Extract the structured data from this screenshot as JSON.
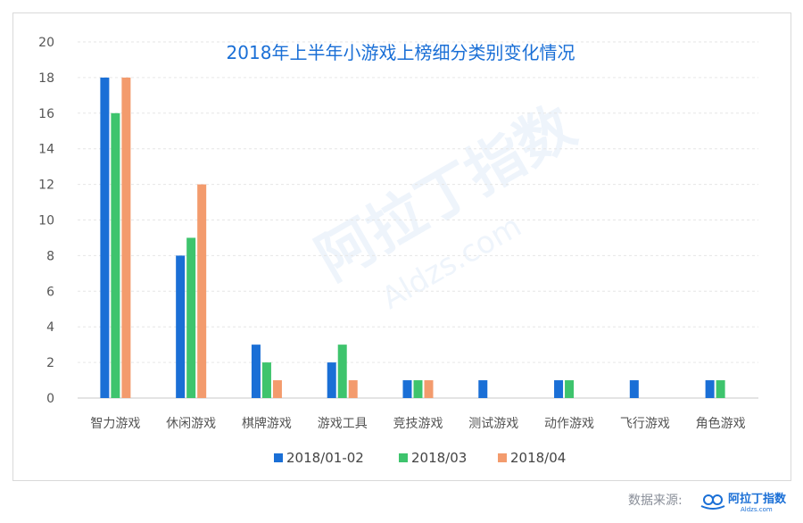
{
  "chart_data": {
    "type": "bar",
    "title": "2018年上半年小游戏上榜细分类别变化情况",
    "xlabel": "",
    "ylabel": "",
    "ylim": [
      0,
      20
    ],
    "yticks": [
      0,
      2,
      4,
      6,
      8,
      10,
      12,
      14,
      16,
      18,
      20
    ],
    "grid": true,
    "legend_position": "bottom-center",
    "categories": [
      "智力游戏",
      "休闲游戏",
      "棋牌游戏",
      "游戏工具",
      "竞技游戏",
      "测试游戏",
      "动作游戏",
      "飞行游戏",
      "角色游戏"
    ],
    "series": [
      {
        "name": "2018/01-02",
        "color": "#1a6fd6",
        "values": [
          18,
          8,
          3,
          2,
          1,
          1,
          1,
          1,
          1
        ]
      },
      {
        "name": "2018/03",
        "color": "#3ec46d",
        "values": [
          16,
          9,
          2,
          3,
          1,
          0,
          1,
          0,
          1
        ]
      },
      {
        "name": "2018/04",
        "color": "#f39b6d",
        "values": [
          18,
          12,
          1,
          1,
          1,
          0,
          0,
          0,
          0
        ]
      }
    ]
  },
  "watermark": {
    "text": "阿拉丁指数",
    "subtext": "Aldzs.com"
  },
  "footer": {
    "source_label": "数据来源:",
    "logo_text": "阿拉丁指数",
    "logo_subtext": "Aldzs.com"
  }
}
